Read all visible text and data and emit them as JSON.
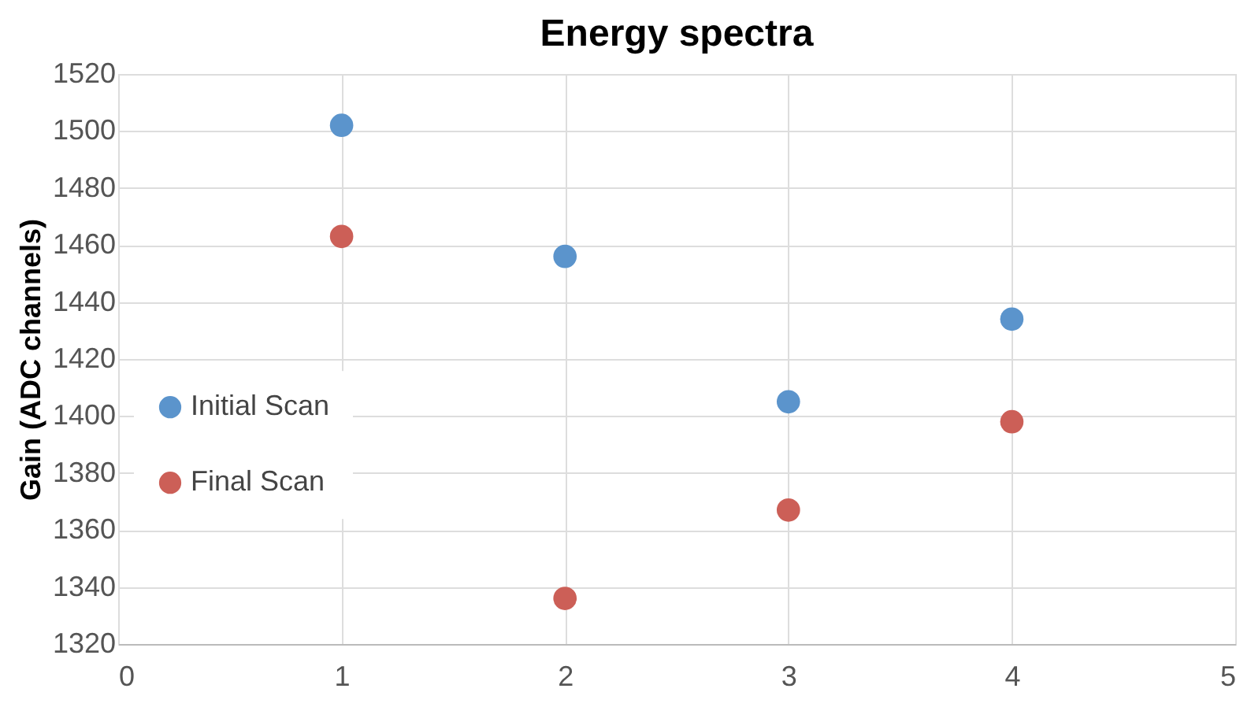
{
  "chart_data": {
    "type": "scatter",
    "title": "Energy spectra",
    "ylabel": "Gain (ADC channels)",
    "x": [
      1,
      2,
      3,
      4
    ],
    "series": [
      {
        "name": "Initial Scan",
        "color": "#5b94cc",
        "values": [
          1502,
          1456,
          1405,
          1434
        ]
      },
      {
        "name": "Final Scan",
        "color": "#cc5f57",
        "values": [
          1463,
          1336,
          1367,
          1398
        ]
      }
    ],
    "xlim": [
      0,
      5
    ],
    "xticks": [
      0,
      1,
      2,
      3,
      4,
      5
    ],
    "ylim": [
      1320,
      1520
    ],
    "yticks": [
      1320,
      1340,
      1360,
      1380,
      1400,
      1420,
      1440,
      1460,
      1480,
      1500,
      1520
    ],
    "grid": true,
    "legend": "left",
    "marker": "circle"
  }
}
